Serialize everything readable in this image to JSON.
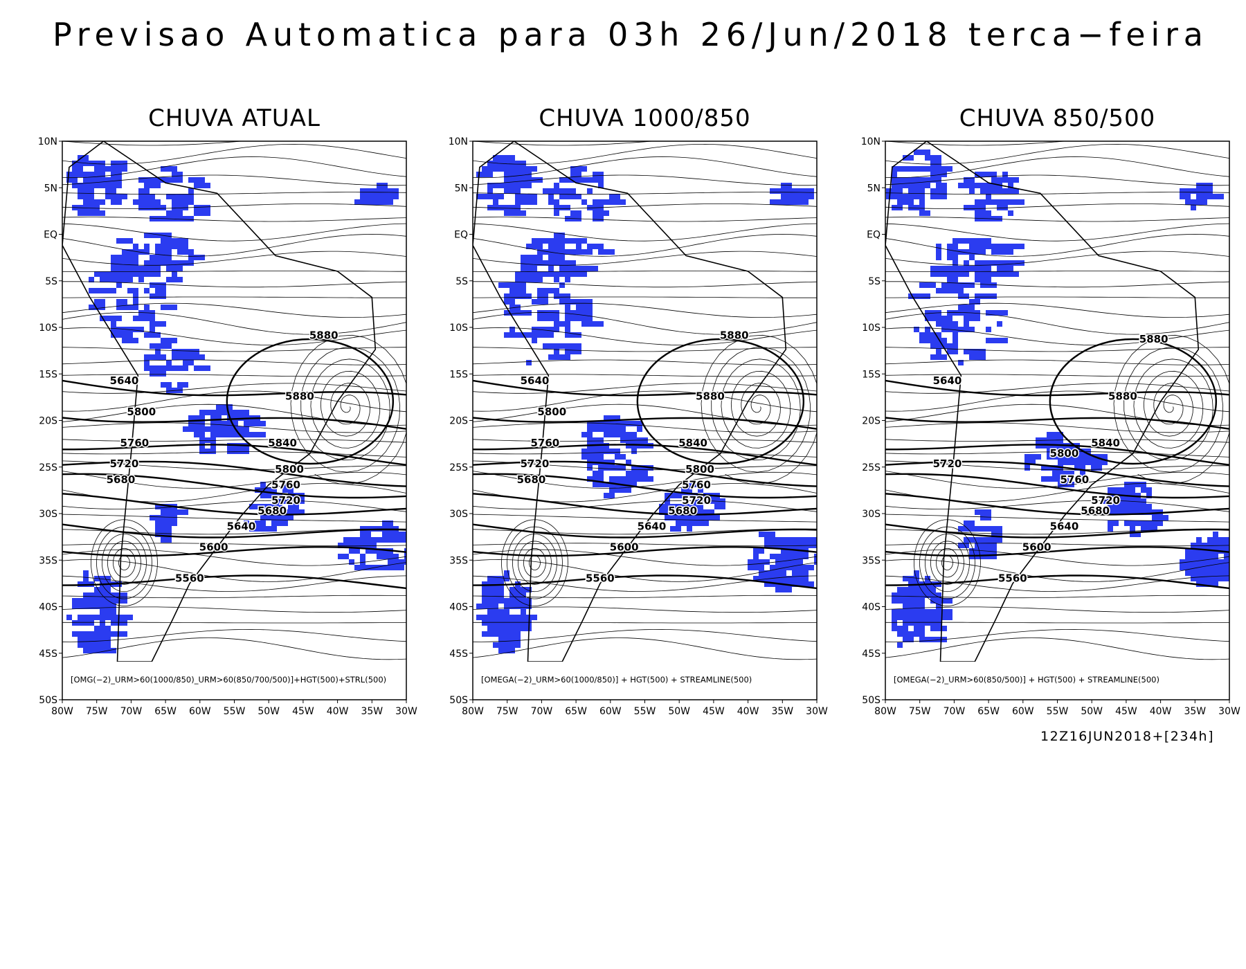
{
  "title": "Previsao Automatica para 03h 26/Jun/2018 terca−feira",
  "lat_labels": [
    "10N",
    "5N",
    "EQ",
    "5S",
    "10S",
    "15S",
    "20S",
    "25S",
    "30S",
    "35S",
    "40S",
    "45S",
    "50S"
  ],
  "lon_labels": [
    "80W",
    "75W",
    "70W",
    "65W",
    "60W",
    "55W",
    "50W",
    "45W",
    "40W",
    "35W",
    "30W"
  ],
  "panels": [
    {
      "title": "CHUVA ATUAL",
      "caption": "[OMG(−2)_URM>60(1000/850)_URM>60(850/700/500)]+HGT(500)+STRL(500)",
      "contour_labels": [
        "5880",
        "5640",
        "5880",
        "5800",
        "5760",
        "5720",
        "5680",
        "5840",
        "5800",
        "5760",
        "5720",
        "5680",
        "5640",
        "5600",
        "5560"
      ]
    },
    {
      "title": "CHUVA 1000/850",
      "caption": "[OMEGA(−2)_URM>60(1000/850)] + HGT(500) + STREAMLINE(500)",
      "contour_labels": [
        "5880",
        "5640",
        "5880",
        "5800",
        "5760",
        "5720",
        "5680",
        "5840",
        "5800",
        "5760",
        "5720",
        "5680",
        "5640",
        "5600",
        "5560"
      ]
    },
    {
      "title": "CHUVA 850/500",
      "caption": "[OMEGA(−2)_URM>60(850/500)] + HGT(500) + STREAMLINE(500)",
      "contour_labels": [
        "5880",
        "5640",
        "5880",
        "5720",
        "5840",
        "5800",
        "5760",
        "5720",
        "5680",
        "5640",
        "5600",
        "5560"
      ]
    }
  ],
  "run_label": "12Z16JUN2018+[234h]"
}
